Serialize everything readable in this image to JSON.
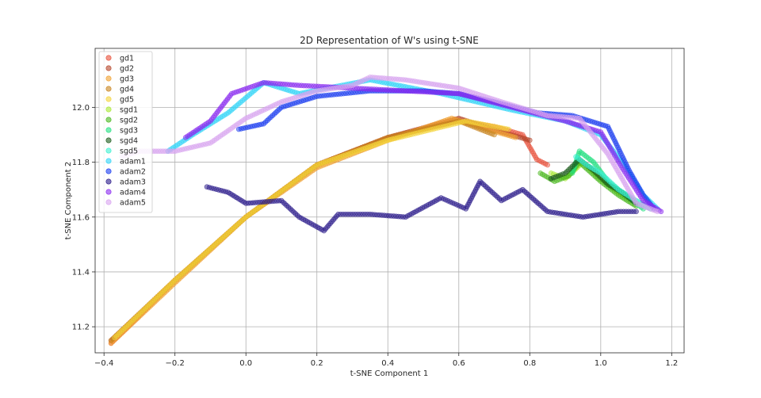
{
  "chart_data": {
    "type": "scatter",
    "title": "2D Representation of W's using t-SNE",
    "xlabel": "t-SNE Component 1",
    "ylabel": "t-SNE Component 2",
    "xlim": [
      -0.425,
      1.235
    ],
    "ylim": [
      11.105,
      12.215
    ],
    "xticks": [
      -0.4,
      -0.2,
      0.0,
      0.2,
      0.4,
      0.6,
      0.8,
      1.0,
      1.2
    ],
    "yticks": [
      11.2,
      11.4,
      11.6,
      11.8,
      12.0
    ],
    "xtick_labels": [
      "−0.4",
      "−0.2",
      "0.0",
      "0.2",
      "0.4",
      "0.6",
      "0.8",
      "1.0",
      "1.2"
    ],
    "ytick_labels": [
      "11.2",
      "11.4",
      "11.6",
      "11.8",
      "12.0"
    ],
    "grid": true,
    "legend_position": "top-left",
    "series": [
      {
        "name": "gd1",
        "color": "#e8503a",
        "points": [
          [
            -0.38,
            11.14
          ],
          [
            -0.2,
            11.37
          ],
          [
            0.0,
            11.6
          ],
          [
            0.2,
            11.79
          ],
          [
            0.4,
            11.89
          ],
          [
            0.6,
            11.95
          ],
          [
            0.7,
            11.93
          ],
          [
            0.78,
            11.9
          ],
          [
            0.82,
            11.81
          ],
          [
            0.85,
            11.79
          ]
        ]
      },
      {
        "name": "gd2",
        "color": "#b5462b",
        "points": [
          [
            -0.38,
            11.15
          ],
          [
            -0.2,
            11.37
          ],
          [
            0.0,
            11.6
          ],
          [
            0.2,
            11.79
          ],
          [
            0.4,
            11.89
          ],
          [
            0.6,
            11.96
          ],
          [
            0.72,
            11.91
          ],
          [
            0.8,
            11.88
          ]
        ]
      },
      {
        "name": "gd3",
        "color": "#f0a030",
        "points": [
          [
            -0.38,
            11.14
          ],
          [
            -0.2,
            11.36
          ],
          [
            0.0,
            11.6
          ],
          [
            0.2,
            11.78
          ],
          [
            0.4,
            11.88
          ],
          [
            0.58,
            11.96
          ],
          [
            0.68,
            11.92
          ],
          [
            0.76,
            11.89
          ]
        ]
      },
      {
        "name": "gd4",
        "color": "#c8841e",
        "points": [
          [
            -0.38,
            11.15
          ],
          [
            -0.2,
            11.37
          ],
          [
            0.0,
            11.6
          ],
          [
            0.2,
            11.79
          ],
          [
            0.4,
            11.89
          ],
          [
            0.6,
            11.95
          ],
          [
            0.7,
            11.9
          ]
        ]
      },
      {
        "name": "gd5",
        "color": "#f4d43a",
        "points": [
          [
            -0.37,
            11.16
          ],
          [
            -0.2,
            11.37
          ],
          [
            0.0,
            11.6
          ],
          [
            0.2,
            11.79
          ],
          [
            0.4,
            11.88
          ],
          [
            0.62,
            11.95
          ],
          [
            0.74,
            11.92
          ]
        ]
      },
      {
        "name": "sgd1",
        "color": "#a8e832",
        "points": [
          [
            0.86,
            11.76
          ],
          [
            0.9,
            11.74
          ],
          [
            0.95,
            11.8
          ],
          [
            1.0,
            11.74
          ],
          [
            1.05,
            11.69
          ],
          [
            1.1,
            11.65
          ]
        ]
      },
      {
        "name": "sgd2",
        "color": "#4ab81e",
        "points": [
          [
            0.83,
            11.76
          ],
          [
            0.87,
            11.73
          ],
          [
            0.91,
            11.75
          ],
          [
            0.94,
            11.8
          ],
          [
            1.0,
            11.73
          ],
          [
            1.05,
            11.68
          ],
          [
            1.1,
            11.64
          ]
        ]
      },
      {
        "name": "sgd3",
        "color": "#22e080",
        "points": [
          [
            0.92,
            11.76
          ],
          [
            0.94,
            11.84
          ],
          [
            0.98,
            11.8
          ],
          [
            1.02,
            11.73
          ],
          [
            1.07,
            11.68
          ],
          [
            1.12,
            11.63
          ]
        ]
      },
      {
        "name": "sgd4",
        "color": "#1a5a1a",
        "points": [
          [
            0.86,
            11.74
          ],
          [
            0.9,
            11.76
          ],
          [
            0.94,
            11.81
          ],
          [
            0.98,
            11.77
          ],
          [
            1.02,
            11.72
          ],
          [
            1.06,
            11.69
          ],
          [
            1.1,
            11.65
          ]
        ]
      },
      {
        "name": "sgd5",
        "color": "#3cf0d0",
        "points": [
          [
            0.93,
            11.82
          ],
          [
            0.96,
            11.79
          ],
          [
            1.0,
            11.76
          ],
          [
            1.05,
            11.7
          ],
          [
            1.1,
            11.66
          ],
          [
            1.14,
            11.63
          ]
        ]
      },
      {
        "name": "adam1",
        "color": "#2fd4f7",
        "points": [
          [
            -0.22,
            11.84
          ],
          [
            -0.15,
            11.9
          ],
          [
            -0.05,
            11.98
          ],
          [
            0.05,
            12.09
          ],
          [
            0.15,
            12.05
          ],
          [
            0.35,
            12.1
          ],
          [
            0.55,
            12.05
          ],
          [
            0.75,
            11.99
          ],
          [
            0.9,
            11.95
          ],
          [
            1.0,
            11.9
          ],
          [
            1.06,
            11.8
          ],
          [
            1.12,
            11.68
          ],
          [
            1.16,
            11.63
          ]
        ]
      },
      {
        "name": "adam2",
        "color": "#1a3cf0",
        "points": [
          [
            -0.02,
            11.92
          ],
          [
            0.05,
            11.94
          ],
          [
            0.1,
            12.0
          ],
          [
            0.2,
            12.04
          ],
          [
            0.35,
            12.06
          ],
          [
            0.5,
            12.06
          ],
          [
            0.6,
            12.05
          ],
          [
            0.7,
            12.02
          ],
          [
            0.82,
            11.98
          ],
          [
            0.92,
            11.97
          ],
          [
            1.02,
            11.93
          ],
          [
            1.08,
            11.77
          ],
          [
            1.12,
            11.68
          ],
          [
            1.15,
            11.63
          ]
        ]
      },
      {
        "name": "adam3",
        "color": "#2a1a8a",
        "points": [
          [
            -0.11,
            11.71
          ],
          [
            -0.05,
            11.69
          ],
          [
            0.0,
            11.65
          ],
          [
            0.1,
            11.66
          ],
          [
            0.15,
            11.6
          ],
          [
            0.22,
            11.55
          ],
          [
            0.26,
            11.61
          ],
          [
            0.35,
            11.61
          ],
          [
            0.45,
            11.6
          ],
          [
            0.55,
            11.67
          ],
          [
            0.62,
            11.63
          ],
          [
            0.66,
            11.73
          ],
          [
            0.72,
            11.66
          ],
          [
            0.78,
            11.7
          ],
          [
            0.85,
            11.62
          ],
          [
            0.95,
            11.6
          ],
          [
            1.05,
            11.62
          ],
          [
            1.1,
            11.62
          ]
        ]
      },
      {
        "name": "adam4",
        "color": "#8a2bf0",
        "points": [
          [
            -0.17,
            11.89
          ],
          [
            -0.1,
            11.95
          ],
          [
            -0.04,
            12.05
          ],
          [
            0.05,
            12.09
          ],
          [
            0.15,
            12.08
          ],
          [
            0.3,
            12.07
          ],
          [
            0.45,
            12.06
          ],
          [
            0.6,
            12.05
          ],
          [
            0.75,
            12.0
          ],
          [
            0.9,
            11.95
          ],
          [
            1.0,
            11.91
          ],
          [
            1.06,
            11.78
          ],
          [
            1.12,
            11.66
          ],
          [
            1.17,
            11.62
          ]
        ]
      },
      {
        "name": "adam5",
        "color": "#d8a4f0",
        "points": [
          [
            -0.35,
            11.82
          ],
          [
            -0.3,
            11.84
          ],
          [
            -0.2,
            11.84
          ],
          [
            -0.1,
            11.87
          ],
          [
            0.0,
            11.96
          ],
          [
            0.1,
            12.02
          ],
          [
            0.2,
            12.06
          ],
          [
            0.3,
            12.08
          ],
          [
            0.35,
            12.11
          ],
          [
            0.45,
            12.1
          ],
          [
            0.6,
            12.07
          ],
          [
            0.72,
            12.02
          ],
          [
            0.85,
            11.97
          ],
          [
            0.94,
            11.96
          ],
          [
            1.02,
            11.83
          ],
          [
            1.1,
            11.65
          ],
          [
            1.16,
            11.62
          ]
        ]
      }
    ]
  }
}
